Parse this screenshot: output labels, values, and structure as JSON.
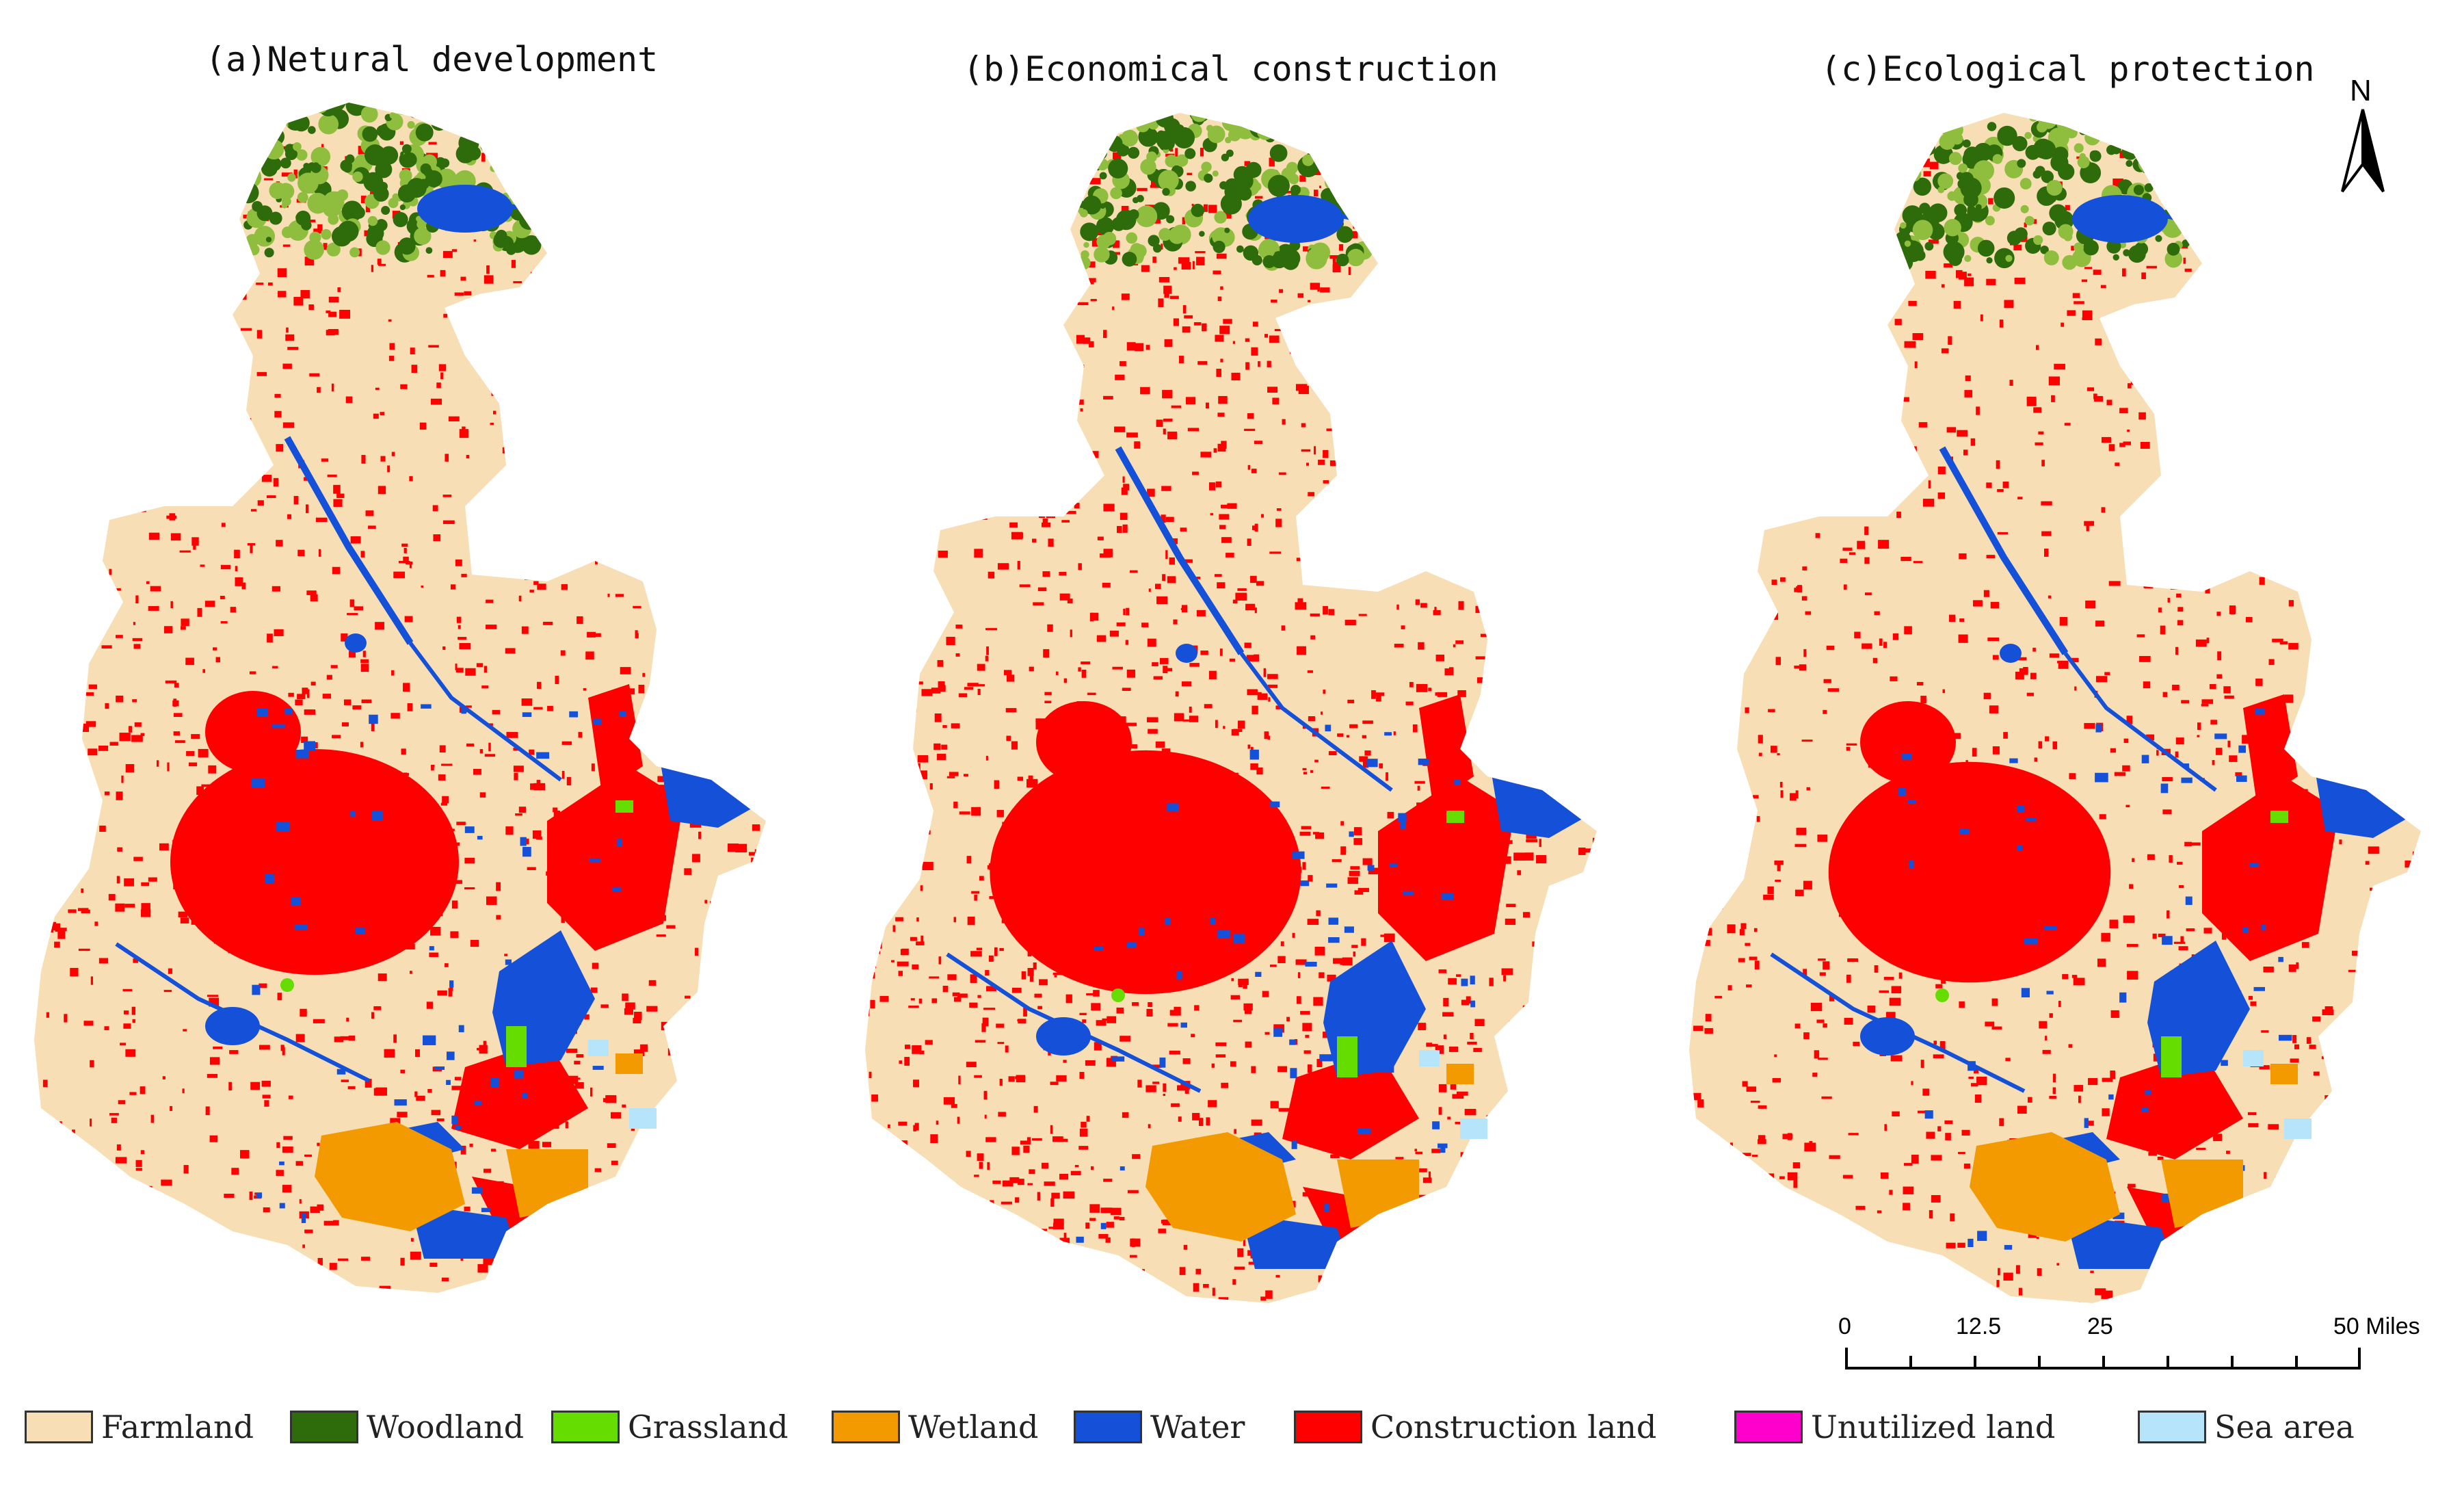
{
  "panels": [
    {
      "title": "(a)Netural development",
      "scenario": "natural"
    },
    {
      "title": "(b)Economical construction",
      "scenario": "economic"
    },
    {
      "title": "(c)Ecological protection",
      "scenario": "ecological"
    }
  ],
  "north_arrow": {
    "label": "N"
  },
  "scale_bar": {
    "ticks": [
      "0",
      "12.5",
      "25",
      "50 Miles"
    ]
  },
  "legend": {
    "items": [
      {
        "label": "Farmland",
        "color": "#F7DEB5"
      },
      {
        "label": "Woodland",
        "color": "#2E6B0A"
      },
      {
        "label": "Grassland",
        "color": "#66DD00"
      },
      {
        "label": "Wetland",
        "color": "#F39A00"
      },
      {
        "label": "Water",
        "color": "#1551D8"
      },
      {
        "label": "Construction land",
        "color": "#FF0000"
      },
      {
        "label": "Unutilized land",
        "color": "#FF00CC"
      },
      {
        "label": "Sea area",
        "color": "#B5E4FB"
      }
    ]
  },
  "colors": {
    "farmland": "#F7DEB5",
    "woodland": "#2E6B0A",
    "woodland_light": "#8FBE3E",
    "grassland": "#66DD00",
    "wetland": "#F39A00",
    "water": "#1551D8",
    "construction": "#FF0000",
    "sea": "#B5E4FB"
  }
}
